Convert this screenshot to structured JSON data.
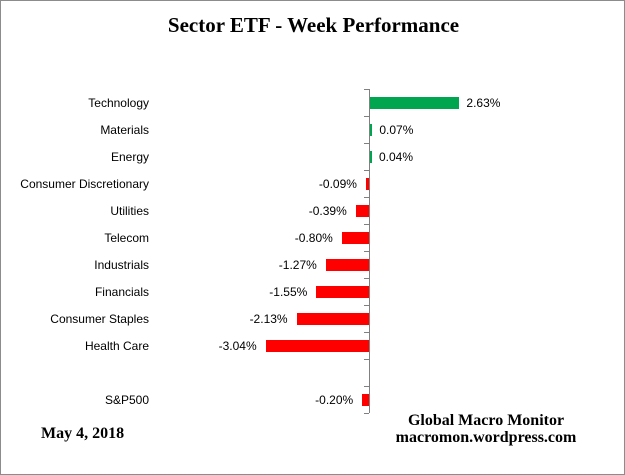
{
  "chart_data": {
    "type": "bar",
    "orientation": "horizontal",
    "title": "Sector ETF - Week Performance",
    "categories": [
      "Technology",
      "Materials",
      "Energy",
      "Consumer Discretionary",
      "Utilities",
      "Telecom",
      "Industrials",
      "Financials",
      "Consumer Staples",
      "Health Care",
      "",
      "S&P500"
    ],
    "values": [
      2.63,
      0.07,
      0.04,
      -0.09,
      -0.39,
      -0.8,
      -1.27,
      -1.55,
      -2.13,
      -3.04,
      null,
      -0.2
    ],
    "value_labels": [
      "2.63%",
      "0.07%",
      "0.04%",
      "-0.09%",
      "-0.39%",
      "-0.80%",
      "-1.27%",
      "-1.55%",
      "-2.13%",
      "-3.04%",
      "",
      "-0.20%"
    ],
    "xlabel": "",
    "ylabel": "",
    "grid": false,
    "legend": false,
    "data_label_position": "outside-end",
    "positive_color": "#00A550",
    "negative_color": "#FF0000",
    "axis_color": "#808080"
  },
  "footer": {
    "date": "May 4, 2018",
    "source_line1": "Global Macro Monitor",
    "source_line2": "macromon.wordpress.com"
  }
}
